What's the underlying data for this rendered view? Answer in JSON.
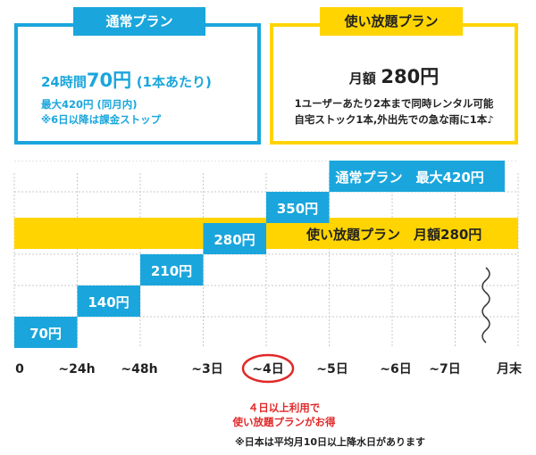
{
  "colors": {
    "blue": "#1aa6dc",
    "yellow": "#ffd400",
    "red": "#e12828",
    "grid": "#c8c8c8"
  },
  "plans": {
    "standard": {
      "label": "通常プラン",
      "price_prefix": "24時間",
      "price": "70円",
      "price_suffix": "(1本あたり)",
      "note1": "最大420円 (同月内)",
      "note2": "※6日以降は課金ストップ"
    },
    "unlimited": {
      "label": "使い放題プラン",
      "price_prefix": "月額",
      "price": "280円",
      "desc1": "1ユーザーあたり2本まで同時レンタル可能",
      "desc2": "自宅ストック1本,外出先での急な雨に1本♪"
    }
  },
  "chart_data": {
    "type": "bar",
    "categories": [
      "0",
      "~24h",
      "~48h",
      "~3日",
      "~4日",
      "~5日",
      "~6日",
      "~7日",
      "月末"
    ],
    "series": [
      {
        "name": "通常プラン",
        "steps": [
          {
            "from": "0",
            "to": "~24h",
            "value": 70,
            "label": "70円"
          },
          {
            "from": "~24h",
            "to": "~48h",
            "value": 140,
            "label": "140円"
          },
          {
            "from": "~48h",
            "to": "~3日",
            "value": 210,
            "label": "210円"
          },
          {
            "from": "~3日",
            "to": "~4日",
            "value": 280,
            "label": "280円"
          },
          {
            "from": "~4日",
            "to": "~5日",
            "value": 350,
            "label": "350円"
          },
          {
            "from": "~5日",
            "to": "月末",
            "value": 420,
            "label": "通常プラン　最大420円"
          }
        ]
      },
      {
        "name": "使い放題プラン",
        "value": 280,
        "from": "0",
        "to": "月末",
        "label": "使い放題プラン　月額280円"
      }
    ],
    "highlight_category": "~4日",
    "grid": true
  },
  "footnotes": {
    "line1": "４日以上利用で",
    "line2": "使い放題プランがお得",
    "line3": "※日本は平均月10日以上降水日があります"
  }
}
